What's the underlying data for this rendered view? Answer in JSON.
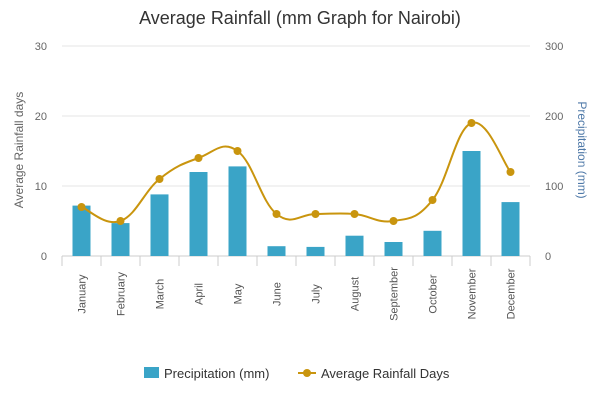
{
  "chart_data": {
    "type": "bar",
    "title": "Average Rainfall (mm Graph for Nairobi)",
    "categories": [
      "January",
      "February",
      "March",
      "April",
      "May",
      "June",
      "July",
      "August",
      "September",
      "October",
      "November",
      "December"
    ],
    "y_left": {
      "label": "Average Rainfall days",
      "ticks": [
        0,
        10,
        20,
        30
      ],
      "ylim": [
        0,
        30
      ]
    },
    "y_right": {
      "label": "Precipitation (mm)",
      "ticks": [
        0,
        100,
        200,
        300
      ],
      "ylim": [
        0,
        300
      ]
    },
    "grid": true,
    "legend_position": "bottom",
    "series": [
      {
        "name": "Precipitation (mm)",
        "type": "bar",
        "axis": "right",
        "color": "#3aa4c7",
        "values": [
          72,
          47,
          88,
          120,
          128,
          14,
          13,
          29,
          20,
          36,
          150,
          77
        ]
      },
      {
        "name": "Average Rainfall Days",
        "type": "line",
        "axis": "left",
        "color": "#c9950e",
        "values": [
          7,
          5,
          11,
          14,
          15,
          6,
          6,
          6,
          5,
          8,
          19,
          12
        ]
      }
    ]
  }
}
